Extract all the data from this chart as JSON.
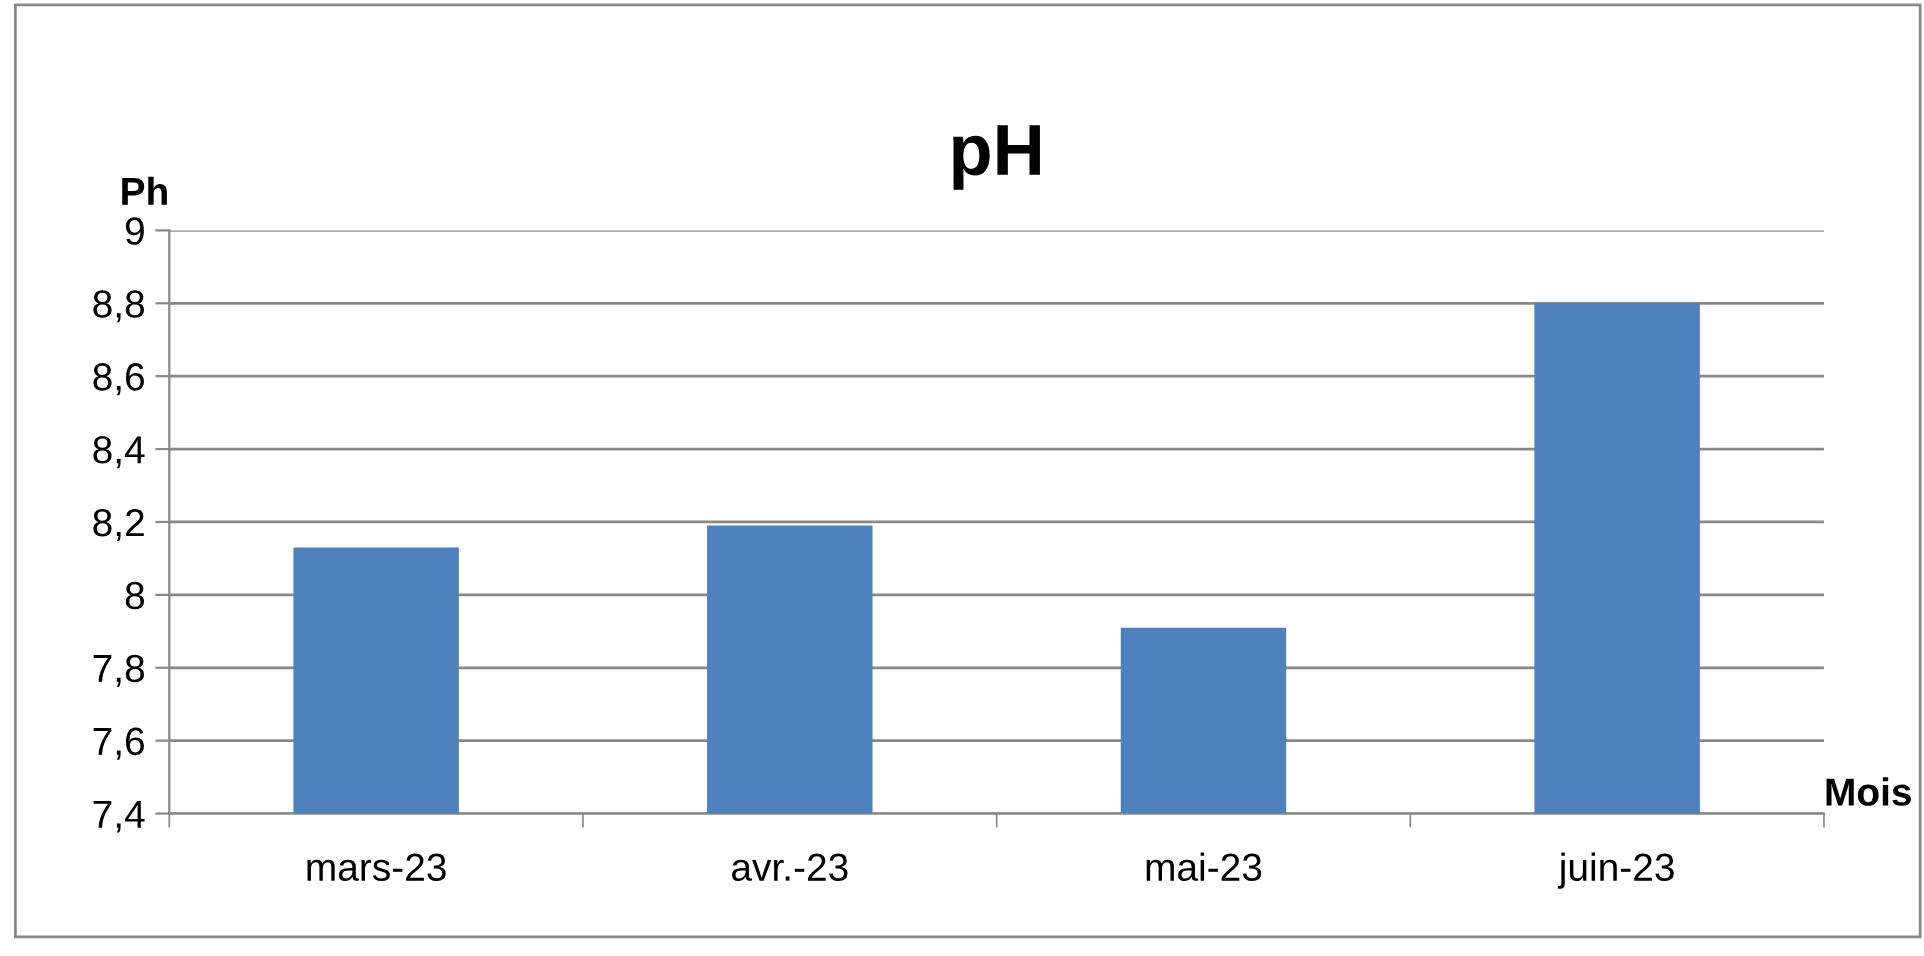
{
  "chart_data": {
    "type": "bar",
    "title": "pH",
    "ylabel": "Ph",
    "xlabel": "Mois",
    "categories": [
      "mars-23",
      "avr.-23",
      "mai-23",
      "juin-23"
    ],
    "values": [
      8.13,
      8.19,
      7.91,
      8.8
    ],
    "color": "#4f81bd",
    "ylim": [
      7.4,
      9
    ],
    "yticks": [
      {
        "value": 7.4,
        "label": "7,4"
      },
      {
        "value": 7.6,
        "label": "7,6"
      },
      {
        "value": 7.8,
        "label": "7,8"
      },
      8,
      {
        "value": 8.2,
        "label": "8,2"
      },
      {
        "value": 8.4,
        "label": "8,4"
      },
      {
        "value": 8.6,
        "label": "8,6"
      },
      {
        "value": 8.8,
        "label": "8,8"
      },
      9
    ],
    "grid": "y",
    "legend": false
  }
}
